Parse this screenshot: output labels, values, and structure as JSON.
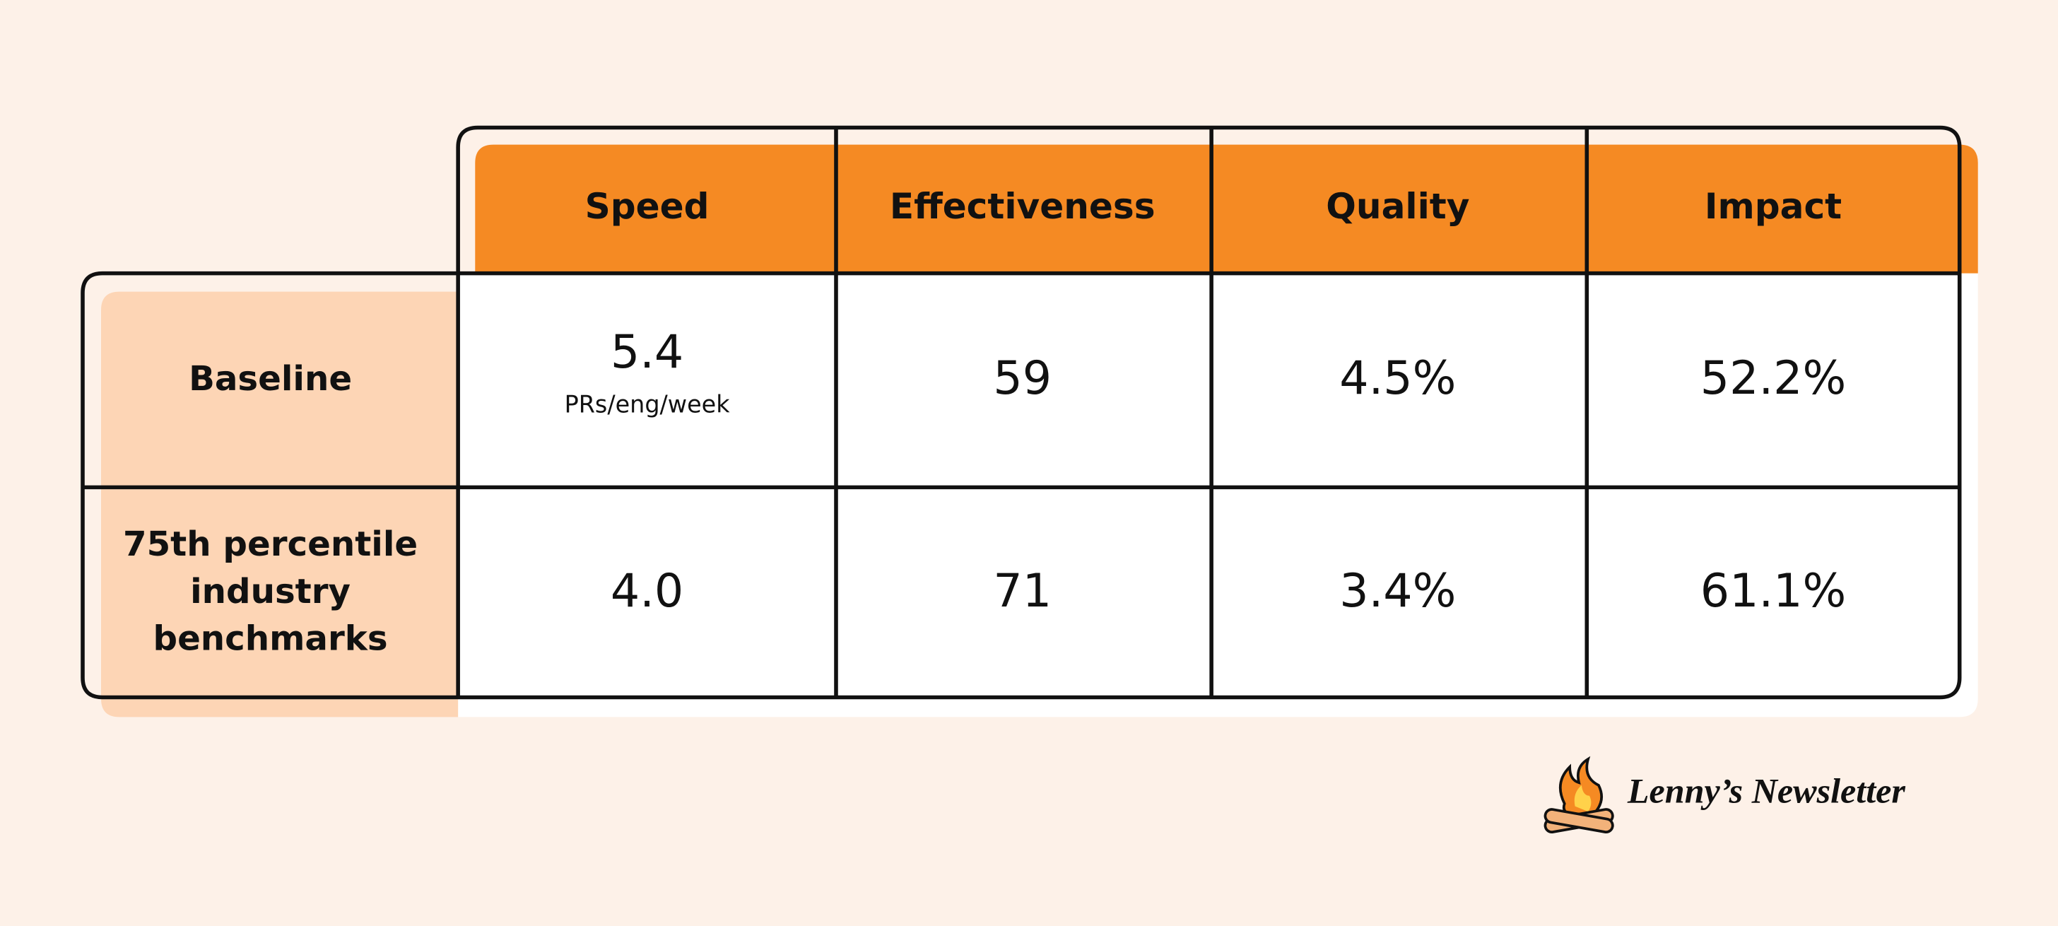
{
  "table": {
    "columns": [
      "Speed",
      "Effectiveness",
      "Quality",
      "Impact"
    ],
    "rows": [
      {
        "label_lines": [
          "Baseline"
        ],
        "cells": [
          "5.4",
          "59",
          "4.5%",
          "52.2%"
        ],
        "note": "PRs/eng/week"
      },
      {
        "label_lines": [
          "75th percentile",
          "industry",
          "benchmarks"
        ],
        "cells": [
          "4.0",
          "71",
          "3.4%",
          "61.1%"
        ]
      }
    ]
  },
  "logo": "Lenny’s Newsletter"
}
